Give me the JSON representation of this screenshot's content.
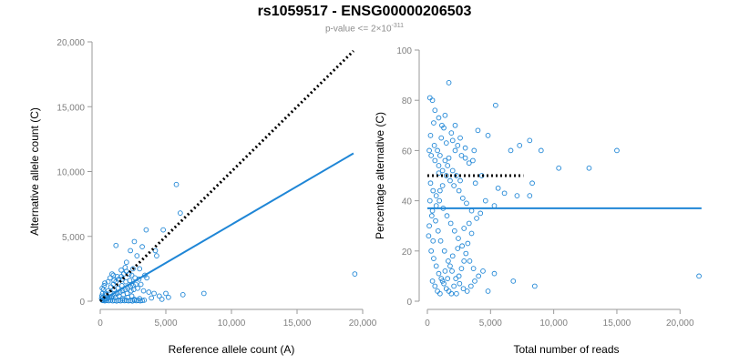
{
  "title": "rs1059517 - ENSG00000206503",
  "subtitle": {
    "text": "p-value <= 2×10",
    "exponent": "-311"
  },
  "colors": {
    "points": "#1f86d6",
    "fit": "#1f86d6",
    "reference": "#000000",
    "axis": "#9a9a9a",
    "tick_text": "#7f7f7f"
  },
  "chart_data": [
    {
      "type": "scatter",
      "title": "",
      "xlabel": "Reference allele count (A)",
      "ylabel": "Alternative allele count (C)",
      "xlim": [
        0,
        20000
      ],
      "ylim": [
        0,
        20000
      ],
      "xticks": [
        0,
        5000,
        10000,
        15000,
        20000
      ],
      "yticks": [
        0,
        5000,
        10000,
        15000,
        20000
      ],
      "xtick_labels": [
        "0",
        "5,000",
        "10,000",
        "15,000",
        "20,000"
      ],
      "ytick_labels": [
        "0",
        "5,000",
        "10,000",
        "15,000",
        "20,000"
      ],
      "fit_line": {
        "x": [
          0,
          19300
        ],
        "y": [
          0,
          11400
        ],
        "style": "solid",
        "name": "fit"
      },
      "reference_line": {
        "x": [
          0,
          19300
        ],
        "y": [
          0,
          19300
        ],
        "style": "dotted",
        "name": "equal ratio"
      },
      "points": [
        [
          150,
          80
        ],
        [
          300,
          150
        ],
        [
          500,
          200
        ],
        [
          700,
          300
        ],
        [
          900,
          400
        ],
        [
          1100,
          500
        ],
        [
          1300,
          600
        ],
        [
          1500,
          700
        ],
        [
          1700,
          800
        ],
        [
          1900,
          900
        ],
        [
          2100,
          1000
        ],
        [
          2300,
          1100
        ],
        [
          2500,
          1200
        ],
        [
          2700,
          1300
        ],
        [
          400,
          600
        ],
        [
          600,
          800
        ],
        [
          800,
          1100
        ],
        [
          1000,
          1300
        ],
        [
          1200,
          1500
        ],
        [
          1400,
          1700
        ],
        [
          1600,
          1900
        ],
        [
          1800,
          2100
        ],
        [
          2000,
          2300
        ],
        [
          2200,
          2100
        ],
        [
          2400,
          2000
        ],
        [
          1300,
          1900
        ],
        [
          1700,
          1700
        ],
        [
          200,
          50
        ],
        [
          350,
          30
        ],
        [
          500,
          60
        ],
        [
          650,
          40
        ],
        [
          800,
          80
        ],
        [
          950,
          30
        ],
        [
          1100,
          50
        ],
        [
          1250,
          20
        ],
        [
          1400,
          60
        ],
        [
          1550,
          30
        ],
        [
          1700,
          70
        ],
        [
          1850,
          40
        ],
        [
          2000,
          60
        ],
        [
          2150,
          30
        ],
        [
          2300,
          50
        ],
        [
          2450,
          20
        ],
        [
          2600,
          70
        ],
        [
          2750,
          40
        ],
        [
          2900,
          60
        ],
        [
          3050,
          30
        ],
        [
          3200,
          50
        ],
        [
          3350,
          80
        ],
        [
          100,
          200
        ],
        [
          120,
          400
        ],
        [
          180,
          600
        ],
        [
          250,
          900
        ],
        [
          300,
          1200
        ],
        [
          350,
          1400
        ],
        [
          150,
          1000
        ],
        [
          200,
          300
        ],
        [
          400,
          100
        ],
        [
          450,
          500
        ],
        [
          550,
          350
        ],
        [
          750,
          650
        ],
        [
          850,
          250
        ],
        [
          1050,
          900
        ],
        [
          1150,
          300
        ],
        [
          1350,
          1000
        ],
        [
          1450,
          400
        ],
        [
          1650,
          1200
        ],
        [
          1750,
          500
        ],
        [
          1950,
          1500
        ],
        [
          2050,
          600
        ],
        [
          2250,
          1600
        ],
        [
          2350,
          800
        ],
        [
          2550,
          900
        ],
        [
          2650,
          1800
        ],
        [
          2850,
          1000
        ],
        [
          2950,
          1700
        ],
        [
          3100,
          1300
        ],
        [
          3300,
          800
        ],
        [
          3400,
          2000
        ],
        [
          3550,
          1800
        ],
        [
          3700,
          700
        ],
        [
          3000,
          2500
        ],
        [
          2800,
          3500
        ],
        [
          3200,
          4200
        ],
        [
          2300,
          3900
        ],
        [
          2000,
          3000
        ],
        [
          2500,
          2500
        ],
        [
          1200,
          4300
        ],
        [
          2600,
          4600
        ],
        [
          3500,
          5500
        ],
        [
          4800,
          5500
        ],
        [
          4200,
          3900
        ],
        [
          4300,
          3500
        ],
        [
          5000,
          600
        ],
        [
          5200,
          300
        ],
        [
          5800,
          9000
        ],
        [
          6100,
          6800
        ],
        [
          6300,
          500
        ],
        [
          7900,
          600
        ],
        [
          4700,
          150
        ],
        [
          4500,
          400
        ],
        [
          3900,
          250
        ],
        [
          4100,
          600
        ],
        [
          19400,
          2100
        ],
        [
          600,
          1500
        ],
        [
          750,
          1800
        ],
        [
          900,
          2100
        ],
        [
          1050,
          1600
        ],
        [
          1900,
          2600
        ],
        [
          1600,
          2400
        ],
        [
          1000,
          2000
        ],
        [
          1700,
          200
        ],
        [
          2100,
          300
        ],
        [
          2400,
          400
        ],
        [
          2600,
          150
        ],
        [
          3000,
          200
        ]
      ]
    },
    {
      "type": "scatter",
      "title": "",
      "xlabel": "Total number of reads",
      "ylabel": "Percentage alternative (C)",
      "xlim": [
        0,
        22000
      ],
      "ylim": [
        0,
        100
      ],
      "xticks": [
        0,
        5000,
        10000,
        15000,
        20000
      ],
      "yticks": [
        0,
        20,
        40,
        60,
        80,
        100
      ],
      "xtick_labels": [
        "0",
        "5,000",
        "10,000",
        "15,000",
        "20,000"
      ],
      "ytick_labels": [
        "0",
        "20",
        "40",
        "60",
        "80",
        "100"
      ],
      "fit_line": {
        "x": [
          0,
          21700
        ],
        "y": [
          37,
          37
        ],
        "style": "solid",
        "name": "mean"
      },
      "reference_line": {
        "x": [
          0,
          7600
        ],
        "y": [
          50,
          50
        ],
        "style": "dotted",
        "name": "50%"
      },
      "points": [
        [
          200,
          81
        ],
        [
          400,
          80
        ],
        [
          600,
          76
        ],
        [
          1700,
          87
        ],
        [
          900,
          73
        ],
        [
          1300,
          69
        ],
        [
          500,
          71
        ],
        [
          1100,
          65
        ],
        [
          1500,
          63
        ],
        [
          2000,
          64
        ],
        [
          2400,
          62
        ],
        [
          2700,
          58
        ],
        [
          3000,
          57
        ],
        [
          3300,
          55
        ],
        [
          3600,
          56
        ],
        [
          2200,
          60
        ],
        [
          5400,
          78
        ],
        [
          4800,
          66
        ],
        [
          6600,
          60
        ],
        [
          7300,
          62
        ],
        [
          8100,
          64
        ],
        [
          9000,
          60
        ],
        [
          15000,
          60
        ],
        [
          12800,
          53
        ],
        [
          10400,
          53
        ],
        [
          8300,
          47
        ],
        [
          8100,
          42
        ],
        [
          7100,
          42
        ],
        [
          6100,
          43
        ],
        [
          5600,
          45
        ],
        [
          5300,
          38
        ],
        [
          4600,
          40
        ],
        [
          4200,
          35
        ],
        [
          3900,
          33
        ],
        [
          3500,
          36
        ],
        [
          3100,
          39
        ],
        [
          2800,
          41
        ],
        [
          2500,
          44
        ],
        [
          2100,
          46
        ],
        [
          1800,
          48
        ],
        [
          1500,
          50
        ],
        [
          1200,
          52
        ],
        [
          900,
          54
        ],
        [
          600,
          56
        ],
        [
          300,
          58
        ],
        [
          150,
          60
        ],
        [
          250,
          47
        ],
        [
          450,
          44
        ],
        [
          700,
          42
        ],
        [
          950,
          40
        ],
        [
          1250,
          37
        ],
        [
          1550,
          34
        ],
        [
          1850,
          31
        ],
        [
          2150,
          28
        ],
        [
          2450,
          25
        ],
        [
          2750,
          22
        ],
        [
          3050,
          19
        ],
        [
          3350,
          16
        ],
        [
          3650,
          13
        ],
        [
          200,
          40
        ],
        [
          400,
          36
        ],
        [
          650,
          32
        ],
        [
          850,
          28
        ],
        [
          1050,
          24
        ],
        [
          1350,
          20
        ],
        [
          1650,
          16
        ],
        [
          1950,
          12
        ],
        [
          2250,
          9
        ],
        [
          2550,
          7
        ],
        [
          2850,
          5
        ],
        [
          3150,
          4
        ],
        [
          3450,
          6
        ],
        [
          3750,
          8
        ],
        [
          4050,
          10
        ],
        [
          4400,
          12
        ],
        [
          4800,
          4
        ],
        [
          5300,
          11
        ],
        [
          6800,
          8
        ],
        [
          8500,
          6
        ],
        [
          21500,
          10
        ],
        [
          300,
          20
        ],
        [
          500,
          17
        ],
        [
          700,
          14
        ],
        [
          900,
          11
        ],
        [
          1100,
          9
        ],
        [
          1300,
          7
        ],
        [
          1500,
          5
        ],
        [
          1700,
          4
        ],
        [
          1900,
          3
        ],
        [
          2100,
          6
        ],
        [
          2300,
          3
        ],
        [
          2500,
          10
        ],
        [
          2700,
          13
        ],
        [
          2900,
          16
        ],
        [
          3200,
          23
        ],
        [
          3500,
          27
        ],
        [
          250,
          66
        ],
        [
          550,
          62
        ],
        [
          800,
          60
        ],
        [
          1000,
          58
        ],
        [
          1400,
          56
        ],
        [
          1600,
          54
        ],
        [
          2000,
          52
        ],
        [
          2300,
          50
        ],
        [
          2600,
          48
        ],
        [
          1200,
          46
        ],
        [
          1000,
          44
        ],
        [
          700,
          38
        ],
        [
          350,
          34
        ],
        [
          150,
          30
        ],
        [
          100,
          26
        ],
        [
          450,
          24
        ],
        [
          1150,
          70
        ],
        [
          1400,
          74
        ],
        [
          1900,
          67
        ],
        [
          2200,
          70
        ],
        [
          2600,
          65
        ],
        [
          3000,
          61
        ],
        [
          4000,
          68
        ],
        [
          3700,
          60
        ],
        [
          400,
          8
        ],
        [
          600,
          6
        ],
        [
          800,
          4
        ],
        [
          1000,
          3
        ],
        [
          1200,
          8
        ],
        [
          1400,
          12
        ],
        [
          1600,
          9
        ],
        [
          1800,
          14
        ],
        [
          2000,
          18
        ],
        [
          2400,
          21
        ],
        [
          2900,
          29
        ],
        [
          3300,
          31
        ],
        [
          3800,
          47
        ],
        [
          4300,
          50
        ],
        [
          1700,
          57
        ],
        [
          900,
          51
        ]
      ]
    }
  ]
}
